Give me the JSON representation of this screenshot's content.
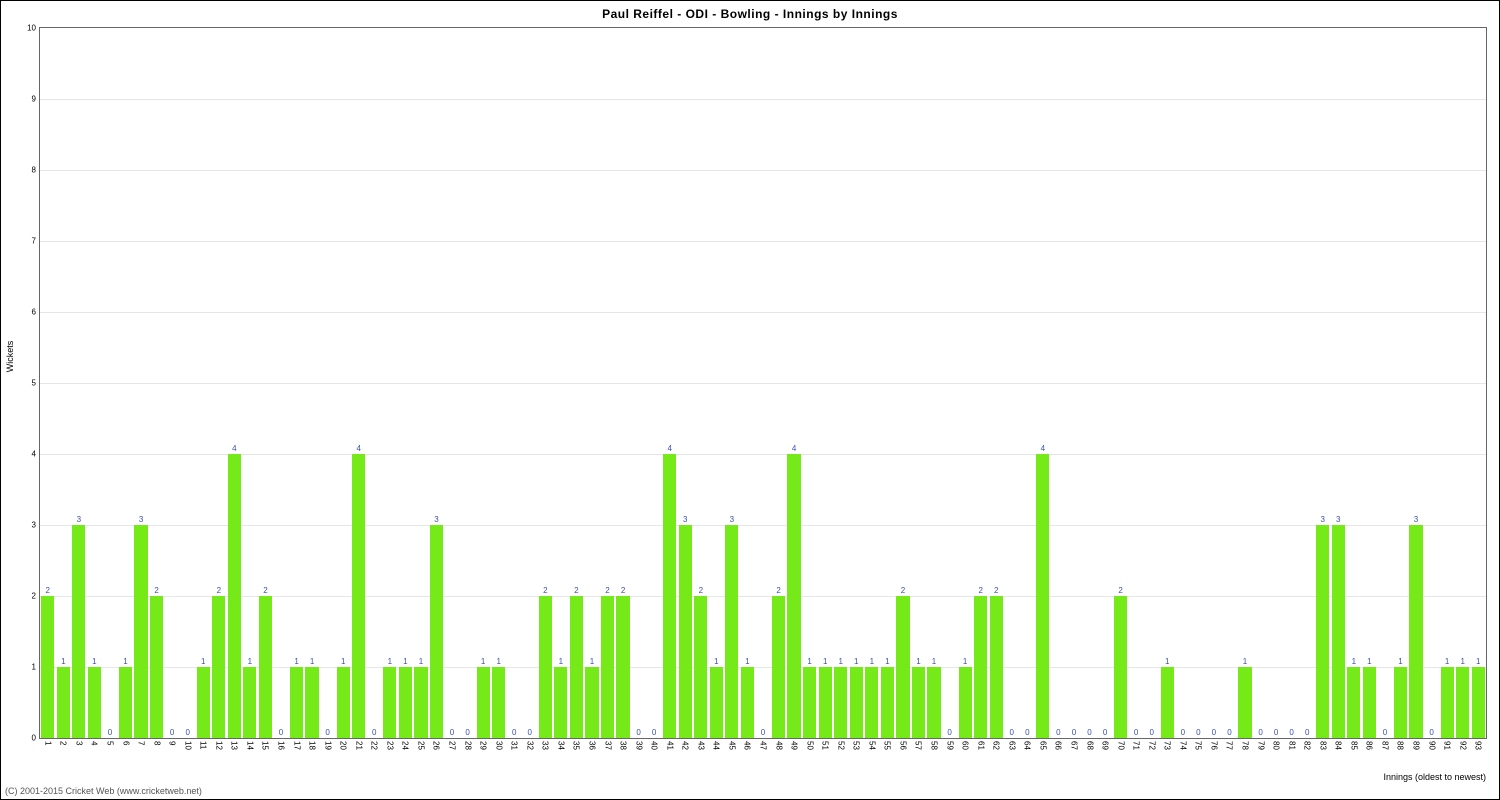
{
  "title": "Paul Reiffel - ODI - Bowling - Innings by Innings",
  "ylabel": "Wickets",
  "xlabel": "Innings (oldest to newest)",
  "footer": "(C) 2001-2015 Cricket Web (www.cricketweb.net)",
  "chart": {
    "type": "bar",
    "ylim": [
      0,
      10
    ],
    "ytick_step": 1,
    "bar_color": "#76e919",
    "value_label_color": "#3a4fb8",
    "value_label_fontsize": 8,
    "grid_color": "#e6e6e6",
    "background_color": "#ffffff",
    "border_color": "#666666",
    "bar_gap_ratio": 0.15,
    "title_fontsize": 12,
    "axis_label_fontsize": 9,
    "tick_fontsize": 8,
    "values": [
      2,
      1,
      3,
      1,
      0,
      1,
      3,
      2,
      0,
      0,
      1,
      2,
      4,
      1,
      2,
      0,
      1,
      1,
      0,
      1,
      4,
      0,
      1,
      1,
      1,
      3,
      0,
      0,
      1,
      1,
      0,
      0,
      2,
      1,
      2,
      1,
      2,
      2,
      0,
      0,
      4,
      3,
      2,
      1,
      3,
      1,
      0,
      2,
      4,
      1,
      1,
      1,
      1,
      1,
      1,
      2,
      1,
      1,
      0,
      1,
      2,
      2,
      0,
      0,
      4,
      0,
      0,
      0,
      0,
      2,
      0,
      0,
      1,
      0,
      0,
      0,
      0,
      1,
      0,
      0,
      0,
      0,
      3,
      3,
      1,
      1,
      0,
      1,
      3,
      0,
      1,
      1,
      1
    ]
  }
}
